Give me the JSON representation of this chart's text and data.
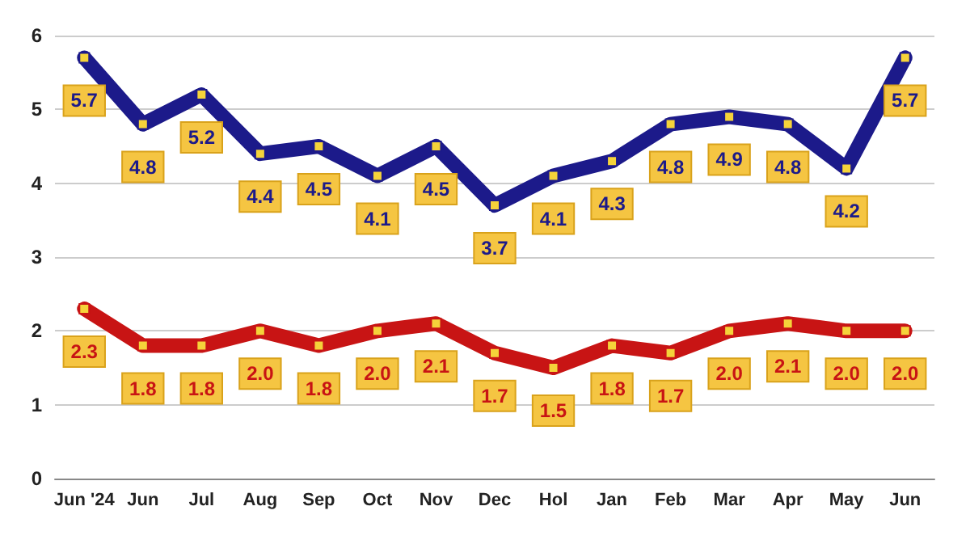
{
  "chart_data": {
    "type": "line",
    "categories": [
      "Jun '24",
      "Jun",
      "Jul",
      "Aug",
      "Sep",
      "Oct",
      "Nov",
      "Dec",
      "Hol",
      "Jan",
      "Feb",
      "Mar",
      "Apr",
      "May",
      "Jun"
    ],
    "series": [
      {
        "color": "#1c1a8a",
        "values": [
          5.7,
          4.8,
          5.2,
          4.4,
          4.5,
          4.1,
          4.5,
          3.7,
          4.1,
          4.3,
          4.8,
          4.9,
          4.8,
          4.2,
          5.7
        ],
        "value_labels": [
          "5.7",
          "4.8",
          "5.2",
          "4.4",
          "4.5",
          "4.1",
          "4.5",
          "3.7",
          "4.1",
          "4.3",
          "4.8",
          "4.9",
          "4.8",
          "4.2",
          "5.7"
        ]
      },
      {
        "color": "#c81414",
        "values": [
          2.3,
          1.8,
          1.8,
          2.0,
          1.8,
          2.0,
          2.1,
          1.7,
          1.5,
          1.8,
          1.7,
          2.0,
          2.1,
          2.0,
          2.0
        ],
        "value_labels": [
          "2.3",
          "1.8",
          "1.8",
          "2.0",
          "1.8",
          "2.0",
          "2.1",
          "1.7",
          "1.5",
          "1.8",
          "1.7",
          "2.0",
          "2.1",
          "2.0",
          "2.0"
        ]
      }
    ],
    "ylim": [
      0,
      6
    ],
    "yticks": [
      0,
      1,
      2,
      3,
      4,
      5,
      6
    ],
    "grid": "y",
    "marker": "square",
    "line_style": "solid"
  }
}
